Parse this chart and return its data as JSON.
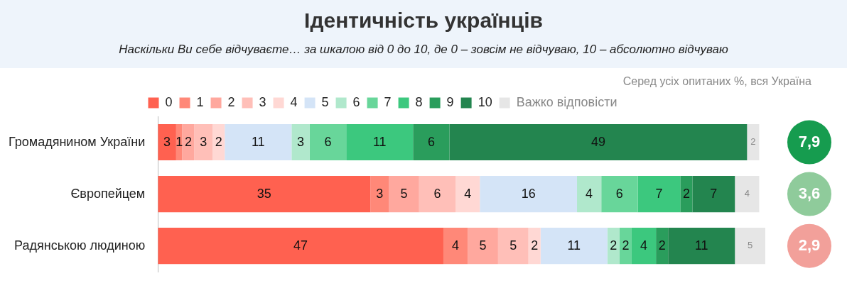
{
  "chart_data": {
    "type": "bar",
    "orientation": "horizontal",
    "stacked": true,
    "data_labels": true,
    "legend": "top",
    "tick_labels": "y",
    "title": "Ідентичність українців",
    "subtitle": "Наскільки Ви себе відчуваєте… за шкалою від 0 до 10, де 0 – зовсім не відчуваю, 10 – абсолютно відчуваю",
    "categories": [
      "Громадянином України",
      "Європейцем",
      "Радянською людиною"
    ],
    "xlim": [
      0,
      100
    ],
    "series": [
      {
        "name": "0",
        "color": "#ff6150",
        "values": [
          3,
          35,
          47
        ]
      },
      {
        "name": "1",
        "color": "#ff8878",
        "values": [
          1,
          3,
          4
        ]
      },
      {
        "name": "2",
        "color": "#ffa89e",
        "values": [
          2,
          5,
          5
        ]
      },
      {
        "name": "3",
        "color": "#ffbfb8",
        "values": [
          3,
          6,
          5
        ]
      },
      {
        "name": "4",
        "color": "#ffd8d4",
        "values": [
          2,
          4,
          2
        ]
      },
      {
        "name": "5",
        "color": "#d4e4f7",
        "values": [
          11,
          16,
          11
        ]
      },
      {
        "name": "6",
        "color": "#b0e8cc",
        "values": [
          3,
          4,
          2
        ]
      },
      {
        "name": "7",
        "color": "#68d69a",
        "values": [
          6,
          6,
          2
        ]
      },
      {
        "name": "8",
        "color": "#3cc87e",
        "values": [
          11,
          7,
          4
        ]
      },
      {
        "name": "9",
        "color": "#2a9d5c",
        "values": [
          6,
          2,
          2
        ]
      },
      {
        "name": "10",
        "color": "#23854f",
        "values": [
          49,
          7,
          11
        ]
      },
      {
        "name": "Важко відповісти",
        "color": "#e6e6e6",
        "values": [
          2,
          4,
          5
        ]
      }
    ],
    "annotations": [
      "Серед усіх опитаних %, вся Україна",
      "7,9",
      "3,6",
      "2,9"
    ]
  }
}
